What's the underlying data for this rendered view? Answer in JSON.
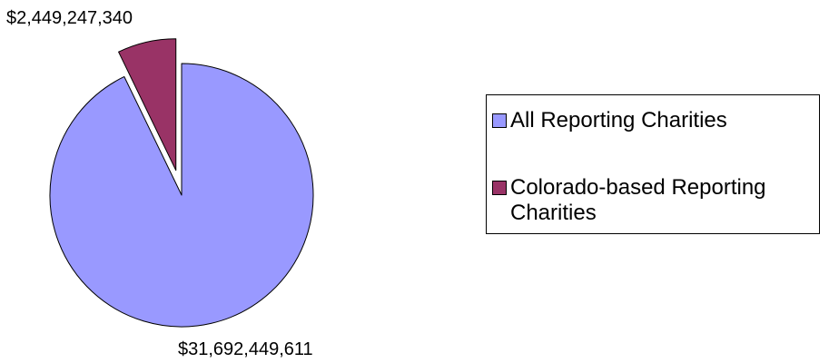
{
  "chart_data": {
    "type": "pie",
    "title": "",
    "slices": [
      {
        "label": "All Reporting Charities",
        "value": 31692449611,
        "value_label": "$31,692,449,611",
        "color": "#9999ff",
        "exploded": false
      },
      {
        "label": "Colorado-based Reporting Charities",
        "value": 2449247340,
        "value_label": "$2,449,247,340",
        "color": "#993366",
        "exploded": true
      }
    ],
    "start_angle": "12 o'clock",
    "direction": "clockwise",
    "legend": {
      "position": "right",
      "entries": [
        "All Reporting Charities",
        "Colorado-based Reporting Charities"
      ]
    }
  }
}
